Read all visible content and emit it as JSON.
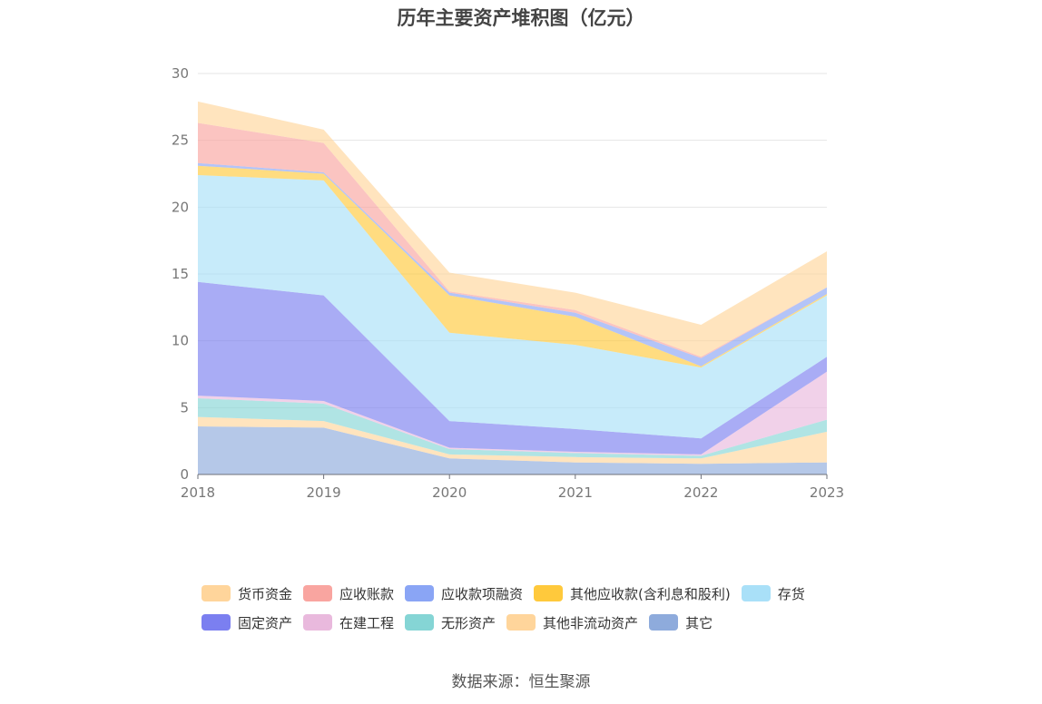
{
  "title": "历年主要资产堆积图（亿元）",
  "source": "数据来源：恒生聚源",
  "chart_data": {
    "type": "area",
    "stacked": true,
    "title": "历年主要资产堆积图（亿元）",
    "categories": [
      "2018",
      "2019",
      "2020",
      "2021",
      "2022",
      "2023"
    ],
    "ylim": [
      0,
      30
    ],
    "yticks": [
      "0",
      "5",
      "10",
      "15",
      "20",
      "25",
      "30"
    ],
    "grid": true,
    "legend_position": "bottom",
    "series": [
      {
        "name": "其它",
        "color": "#8eabdc",
        "values": [
          3.6,
          3.5,
          1.2,
          0.9,
          0.8,
          0.9
        ]
      },
      {
        "name": "其他非流动资产",
        "color": "#ffd59b",
        "values": [
          0.7,
          0.5,
          0.3,
          0.4,
          0.4,
          2.3
        ]
      },
      {
        "name": "无形资产",
        "color": "#85d5d5",
        "values": [
          1.4,
          1.3,
          0.4,
          0.3,
          0.2,
          0.9
        ]
      },
      {
        "name": "在建工程",
        "color": "#e9b9dd",
        "values": [
          0.2,
          0.2,
          0.1,
          0.1,
          0.1,
          3.6
        ]
      },
      {
        "name": "固定资产",
        "color": "#7b7ff0",
        "values": [
          8.5,
          7.9,
          2.0,
          1.7,
          1.2,
          1.1
        ]
      },
      {
        "name": "存货",
        "color": "#a9e0f8",
        "values": [
          8.0,
          8.6,
          6.6,
          6.3,
          5.3,
          4.6
        ]
      },
      {
        "name": "其他应收款(含利息和股利)",
        "color": "#ffc93c",
        "values": [
          0.7,
          0.5,
          2.8,
          2.1,
          0.1,
          0.1
        ]
      },
      {
        "name": "应收款项融资",
        "color": "#8aa5f5",
        "values": [
          0.2,
          0.1,
          0.2,
          0.3,
          0.6,
          0.5
        ]
      },
      {
        "name": "应收账款",
        "color": "#f9a5a0",
        "values": [
          3.0,
          2.2,
          0.1,
          0.2,
          0.1,
          0.0
        ]
      },
      {
        "name": "货币资金",
        "color": "#ffd59b",
        "values": [
          1.6,
          1.0,
          1.4,
          1.3,
          2.4,
          2.7
        ]
      }
    ]
  },
  "legend_rows": [
    [
      {
        "name": "货币资金",
        "color": "#ffd59b"
      },
      {
        "name": "应收账款",
        "color": "#f9a5a0"
      },
      {
        "name": "应收款项融资",
        "color": "#8aa5f5"
      },
      {
        "name": "其他应收款(含利息和股利)",
        "color": "#ffc93c"
      },
      {
        "name": "存货",
        "color": "#a9e0f8"
      }
    ],
    [
      {
        "name": "固定资产",
        "color": "#7b7ff0"
      },
      {
        "name": "在建工程",
        "color": "#e9b9dd"
      },
      {
        "name": "无形资产",
        "color": "#85d5d5"
      },
      {
        "name": "其他非流动资产",
        "color": "#ffd59b"
      },
      {
        "name": "其它",
        "color": "#8eabdc"
      }
    ]
  ]
}
